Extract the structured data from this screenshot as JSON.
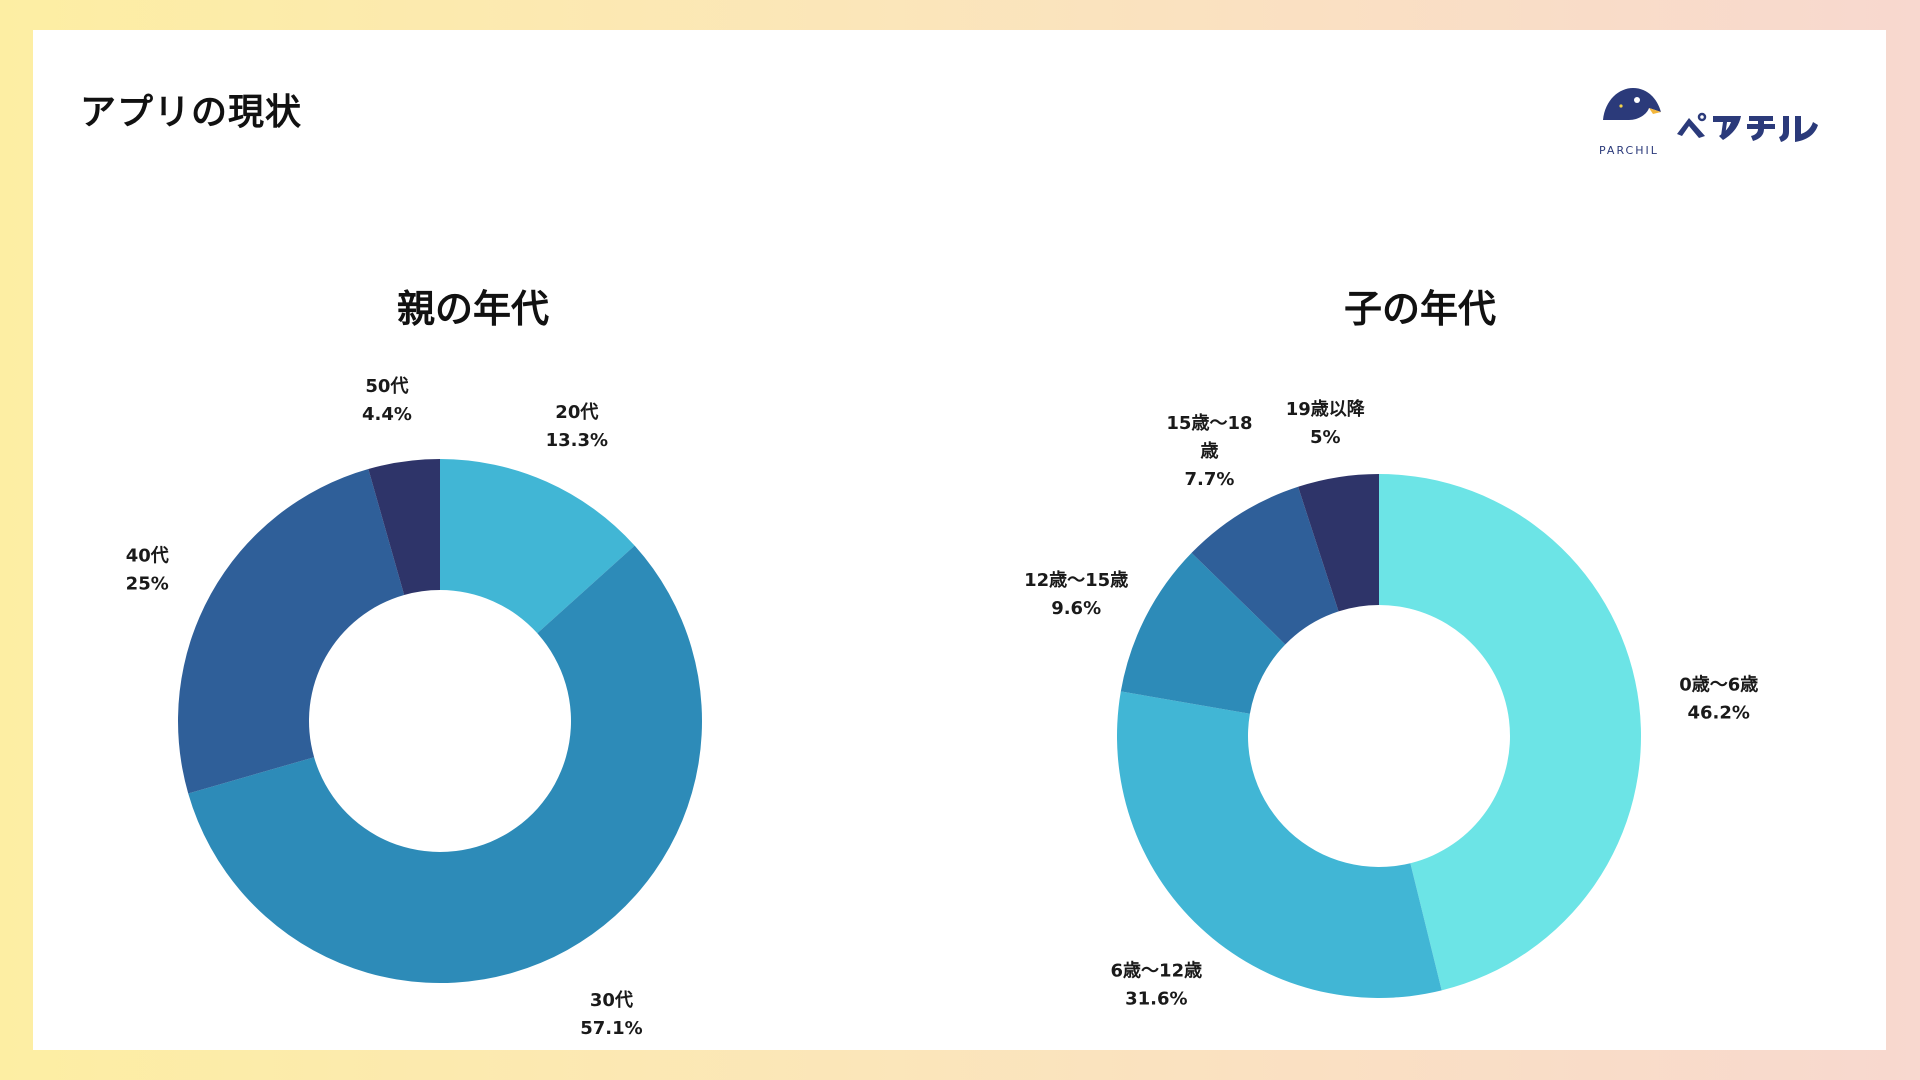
{
  "page": {
    "title": "アプリの現状"
  },
  "logo": {
    "subtext": "PARCHIL",
    "wordmark": "ペアチル",
    "color": "#2b3a7a"
  },
  "chart_data": [
    {
      "type": "pie",
      "donut": true,
      "title": "親の年代",
      "categories": [
        "20代",
        "30代",
        "40代",
        "50代"
      ],
      "values": [
        13.3,
        57.1,
        25,
        4.4
      ],
      "value_labels": [
        "13.3%",
        "57.1%",
        "25%",
        "4.4%"
      ],
      "colors": [
        "#41b6d5",
        "#2d8bb8",
        "#2f5f99",
        "#2e3469"
      ],
      "label_lines": [
        [
          "20代",
          "13.3%"
        ],
        [
          "30代",
          "57.1%"
        ],
        [
          "40代",
          "25%"
        ],
        [
          "50代",
          "4.4%"
        ]
      ]
    },
    {
      "type": "pie",
      "donut": true,
      "title": "子の年代",
      "categories": [
        "0歳〜6歳",
        "6歳〜12歳",
        "12歳〜15歳",
        "15歳〜18歳",
        "19歳以降"
      ],
      "values": [
        46.2,
        31.6,
        9.6,
        7.7,
        5
      ],
      "value_labels": [
        "46.2%",
        "31.6%",
        "9.6%",
        "7.7%",
        "5%"
      ],
      "colors": [
        "#6ce4e6",
        "#41b6d5",
        "#2d8bb8",
        "#2f5f99",
        "#2e3469"
      ],
      "label_lines": [
        [
          "0歳〜6歳",
          "46.2%"
        ],
        [
          "6歳〜12歳",
          "31.6%"
        ],
        [
          "12歳〜15歳",
          "9.6%"
        ],
        [
          "15歳〜18",
          "歳",
          "7.7%"
        ],
        [
          "19歳以降",
          "5%"
        ]
      ]
    }
  ]
}
